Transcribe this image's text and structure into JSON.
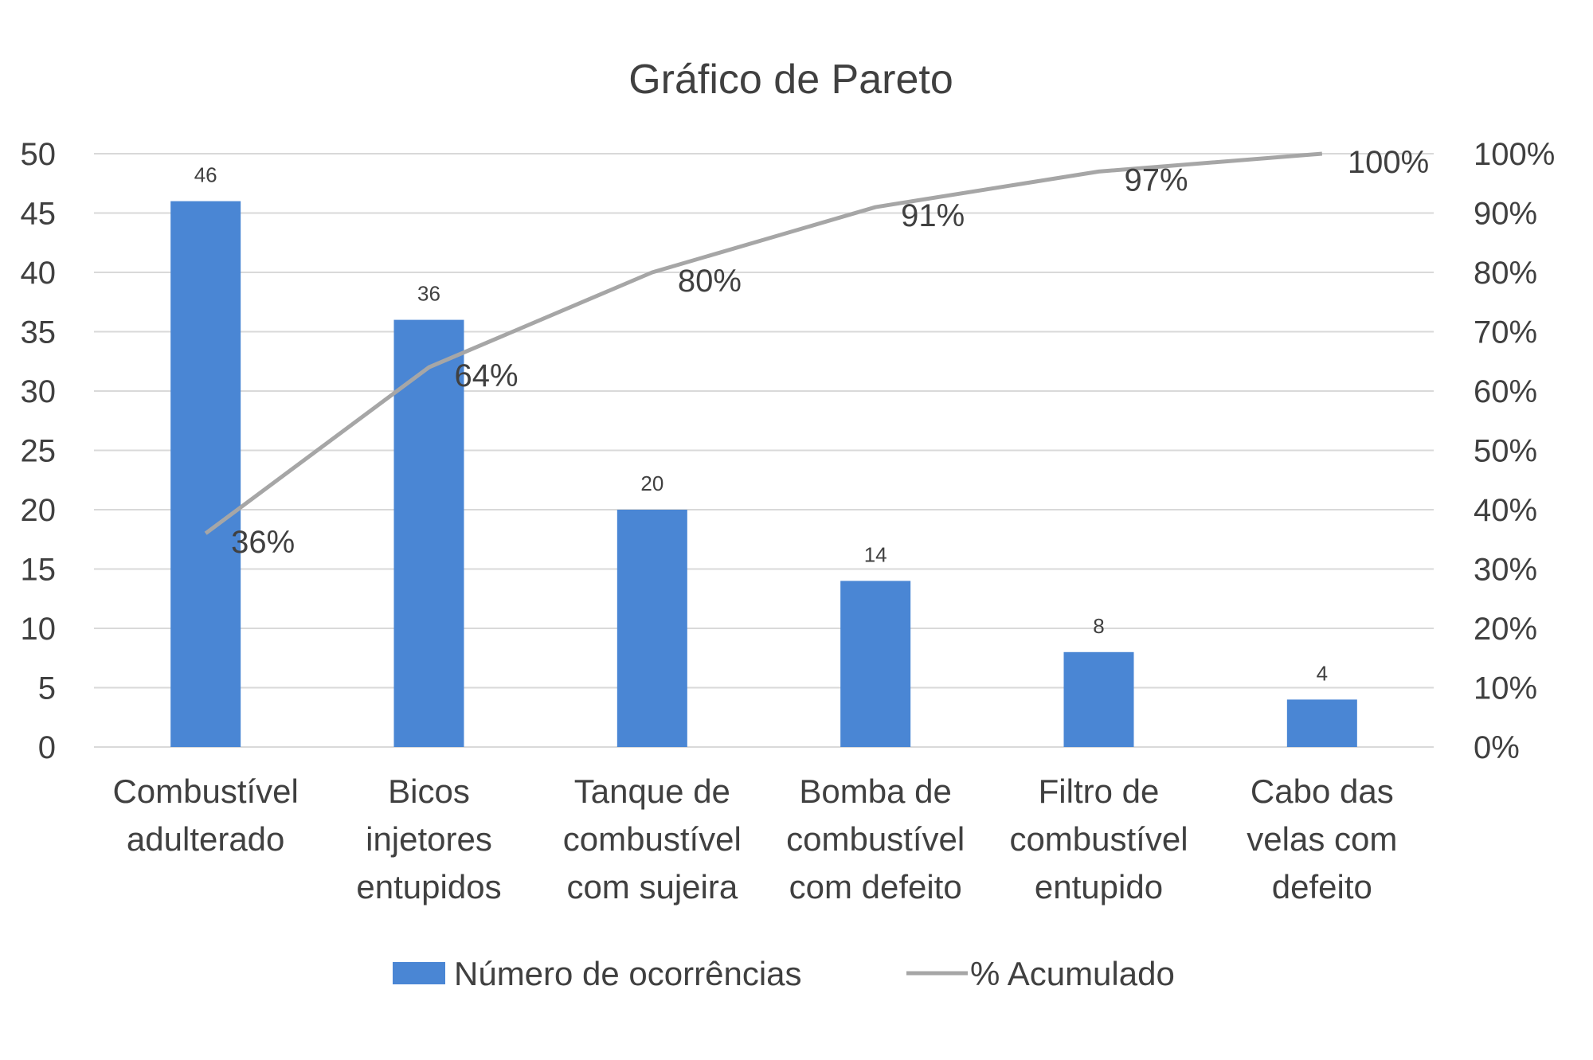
{
  "colors": {
    "bars": "#4a86d4",
    "line": "#a6a6a6",
    "grid": "#d9d9d9",
    "text": "#404040",
    "background": "#ffffff"
  },
  "chart_data": {
    "type": "bar",
    "title": "Gráfico de Pareto",
    "categories": [
      [
        "Combustível",
        "adulterado"
      ],
      [
        "Bicos",
        "injetores",
        "entupidos"
      ],
      [
        "Tanque de",
        "combustível",
        "com sujeira"
      ],
      [
        "Bomba de",
        "combustível",
        "com defeito"
      ],
      [
        "Filtro de",
        "combustível",
        "entupido"
      ],
      [
        "Cabo das",
        "velas com",
        "defeito"
      ]
    ],
    "series": [
      {
        "name": "Número de ocorrências",
        "type": "bar",
        "axis": "left",
        "values": [
          46,
          36,
          20,
          14,
          8,
          4
        ],
        "labels": [
          "46",
          "36",
          "20",
          "14",
          "8",
          "4"
        ]
      },
      {
        "name": "% Acumulado",
        "type": "line",
        "axis": "right",
        "values": [
          36,
          64,
          80,
          91,
          97,
          100
        ],
        "labels": [
          "36%",
          "64%",
          "80%",
          "91%",
          "97%",
          "100%"
        ]
      }
    ],
    "y_left": {
      "min": 0,
      "max": 50,
      "step": 5,
      "ticks": [
        "0",
        "5",
        "10",
        "15",
        "20",
        "25",
        "30",
        "35",
        "40",
        "45",
        "50"
      ]
    },
    "y_right": {
      "min": 0,
      "max": 100,
      "step": 10,
      "ticks": [
        "0%",
        "10%",
        "20%",
        "30%",
        "40%",
        "50%",
        "60%",
        "70%",
        "80%",
        "90%",
        "100%"
      ]
    },
    "grid": true,
    "legend_position": "bottom"
  }
}
